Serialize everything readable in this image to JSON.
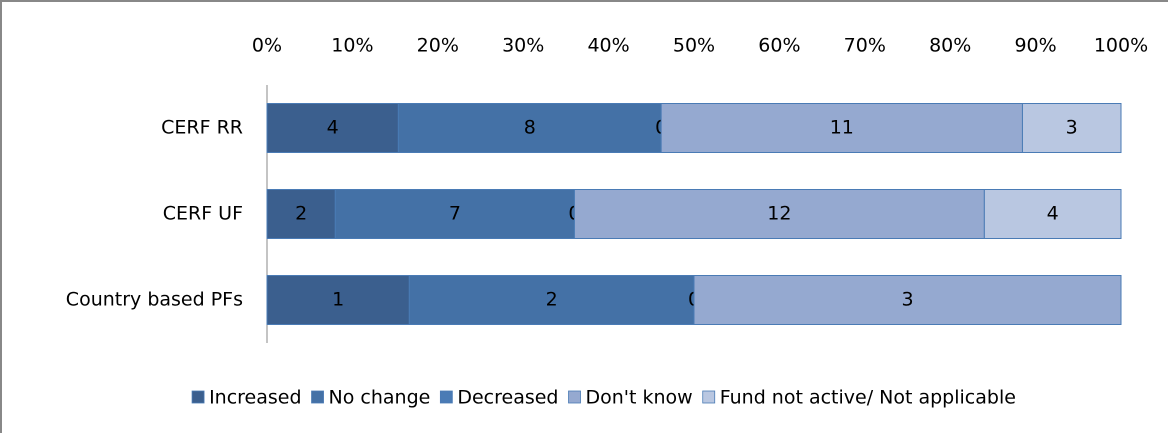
{
  "chart_data": {
    "type": "bar",
    "orientation": "horizontal",
    "stacking": "percent",
    "categories": [
      "CERF RR",
      "CERF UF",
      "Country based PFs"
    ],
    "series": [
      {
        "name": "Increased",
        "color": "#3b5f8e",
        "values": [
          4,
          2,
          1
        ]
      },
      {
        "name": "No change",
        "color": "#4471a6",
        "values": [
          8,
          7,
          2
        ]
      },
      {
        "name": "Decreased",
        "color": "#4a7bb5",
        "values": [
          0,
          0,
          0
        ]
      },
      {
        "name": "Don't know",
        "color": "#95a9d0",
        "values": [
          11,
          12,
          3
        ]
      },
      {
        "name": "Fund not active/ Not applicable",
        "color": "#b9c7e1",
        "values": [
          3,
          4,
          null
        ]
      }
    ],
    "xlim": [
      0,
      100
    ],
    "xticks": [
      {
        "value": 0,
        "label": "0%"
      },
      {
        "value": 10,
        "label": "10%"
      },
      {
        "value": 20,
        "label": "20%"
      },
      {
        "value": 30,
        "label": "30%"
      },
      {
        "value": 40,
        "label": "40%"
      },
      {
        "value": 50,
        "label": "50%"
      },
      {
        "value": 60,
        "label": "60%"
      },
      {
        "value": 70,
        "label": "70%"
      },
      {
        "value": 80,
        "label": "80%"
      },
      {
        "value": 90,
        "label": "90%"
      },
      {
        "value": 100,
        "label": "100%"
      }
    ],
    "legend": "bottom"
  }
}
